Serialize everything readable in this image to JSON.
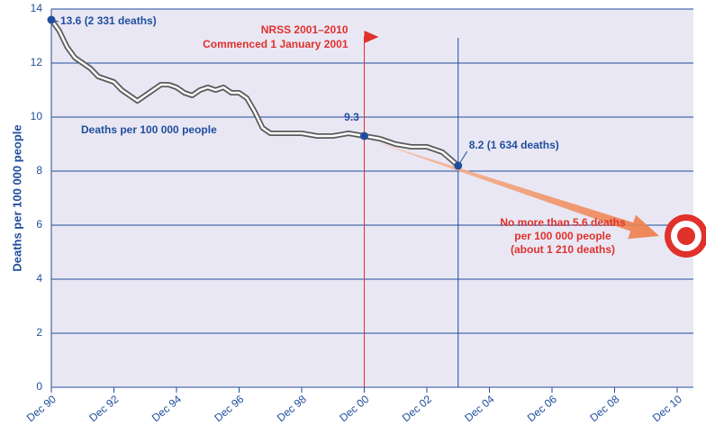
{
  "chart_data": {
    "type": "line",
    "y_label": "Deaths per 100 000 people",
    "series_label": "Deaths per 100 000 people",
    "x": [
      1990,
      1990.25,
      1990.5,
      1990.75,
      1991,
      1991.25,
      1991.5,
      1991.75,
      1992,
      1992.25,
      1992.5,
      1992.75,
      1993,
      1993.25,
      1993.5,
      1993.75,
      1994,
      1994.25,
      1994.5,
      1994.75,
      1995,
      1995.25,
      1995.5,
      1995.75,
      1996,
      1996.25,
      1996.5,
      1996.75,
      1997,
      1997.5,
      1998,
      1998.5,
      1999,
      1999.5,
      2000,
      2000.5,
      2001,
      2001.5,
      2002,
      2002.5,
      2003
    ],
    "values": [
      13.6,
      13.2,
      12.6,
      12.2,
      12.0,
      11.8,
      11.5,
      11.4,
      11.3,
      11.0,
      10.8,
      10.6,
      10.8,
      11.0,
      11.2,
      11.2,
      11.1,
      10.9,
      10.8,
      11.0,
      11.1,
      11.0,
      11.1,
      10.9,
      10.9,
      10.7,
      10.2,
      9.6,
      9.4,
      9.4,
      9.4,
      9.3,
      9.3,
      9.4,
      9.3,
      9.2,
      9.0,
      8.9,
      8.9,
      8.7,
      8.2
    ],
    "color": "#5a5a5a",
    "xlim": [
      1990,
      2010
    ],
    "ylim": [
      0,
      14
    ],
    "xticks": [
      {
        "value": 1990,
        "label": "Dec 90"
      },
      {
        "value": 1992,
        "label": "Dec 92"
      },
      {
        "value": 1994,
        "label": "Dec 94"
      },
      {
        "value": 1996,
        "label": "Dec 96"
      },
      {
        "value": 1998,
        "label": "Dec 98"
      },
      {
        "value": 2000,
        "label": "Dec 00"
      },
      {
        "value": 2002,
        "label": "Dec 02"
      },
      {
        "value": 2004,
        "label": "Dec 04"
      },
      {
        "value": 2006,
        "label": "Dec 06"
      },
      {
        "value": 2008,
        "label": "Dec 08"
      },
      {
        "value": 2010,
        "label": "Dec 10"
      }
    ],
    "yticks": [
      0,
      2,
      4,
      6,
      8,
      10,
      12,
      14
    ],
    "grid": true,
    "points": [
      {
        "x": 1990,
        "value": 13.6,
        "label": "13.6 (2 331 deaths)"
      },
      {
        "x": 2000,
        "value": 9.3,
        "label": "9.3"
      },
      {
        "x": 2003,
        "value": 8.2,
        "label": "8.2 (1 634 deaths)"
      }
    ],
    "strategy": {
      "x": 2000,
      "lines": [
        "NRSS 2001–2010",
        "Commenced 1 January 2001"
      ]
    },
    "target": {
      "x": 2010,
      "value": 5.6,
      "lines": [
        "No more than 5.6 deaths",
        "per 100 000 people",
        "(about 1 210 deaths)"
      ]
    }
  }
}
